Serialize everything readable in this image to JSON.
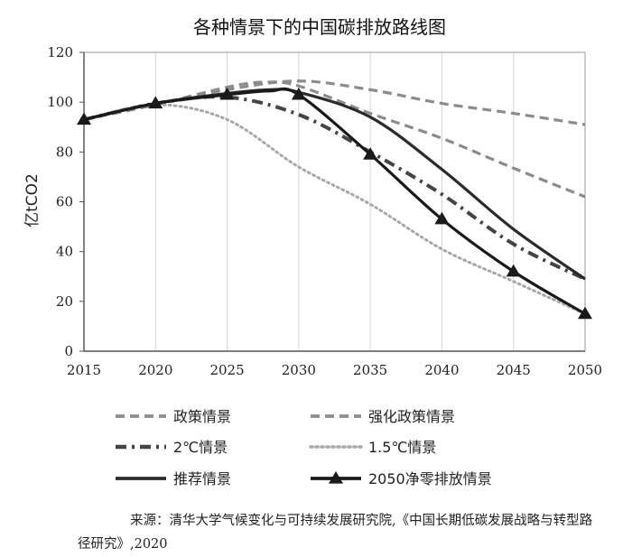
{
  "chart_data": {
    "type": "line",
    "title": "各种情景下的中国碳排放路线图",
    "ylabel": "亿tCO2",
    "xlabel": "",
    "xlim": [
      2015,
      2050
    ],
    "ylim": [
      0,
      120
    ],
    "x_ticks": [
      "2015",
      "2020",
      "2025",
      "2030",
      "2035",
      "2040",
      "2045",
      "2050"
    ],
    "y_ticks": [
      "0",
      "20",
      "40",
      "60",
      "80",
      "100",
      "120"
    ],
    "grid": "vertical",
    "legend_placement": "bottom",
    "series": [
      {
        "name": "政策情景",
        "style": "dashed",
        "color": "#8c8c8c",
        "x": [
          2015,
          2020,
          2025,
          2030,
          2035,
          2040,
          2045,
          2050
        ],
        "values": [
          93,
          99,
          105,
          108.5,
          105,
          99.5,
          95.5,
          91
        ]
      },
      {
        "name": "强化政策情景",
        "style": "dashed",
        "color": "#8c8c8c",
        "x": [
          2015,
          2020,
          2025,
          2027.5,
          2030,
          2035,
          2040,
          2045,
          2050
        ],
        "values": [
          93,
          99,
          106,
          108,
          106.5,
          95.5,
          85.5,
          73.5,
          62
        ]
      },
      {
        "name": "2℃情景",
        "style": "dash-dot",
        "color": "#444444",
        "x": [
          2015,
          2020,
          2025,
          2030,
          2035,
          2040,
          2045,
          2050
        ],
        "values": [
          93,
          99.5,
          102,
          95,
          80,
          63,
          43,
          29
        ]
      },
      {
        "name": "1.5℃情景",
        "style": "dotted",
        "color": "#a8a8a8",
        "x": [
          2015,
          2020,
          2025,
          2030,
          2035,
          2040,
          2045,
          2050
        ],
        "values": [
          93,
          99,
          93,
          74,
          59,
          41,
          28,
          15
        ]
      },
      {
        "name": "推荐情景",
        "style": "solid",
        "color": "#2b2b2b",
        "x": [
          2015,
          2020,
          2025,
          2028,
          2030,
          2035,
          2040,
          2045,
          2050
        ],
        "values": [
          93,
          99.5,
          103.5,
          105,
          104,
          94,
          73,
          49,
          29
        ]
      },
      {
        "name": "2050净零排放情景",
        "style": "solid-triangle",
        "color": "#1a1a1a",
        "x": [
          2015,
          2020,
          2025,
          2028,
          2030,
          2035,
          2040,
          2045,
          2050
        ],
        "values": [
          93,
          99.5,
          103,
          104.5,
          103,
          79,
          53,
          32,
          15
        ]
      }
    ]
  },
  "source_prefix": "来源：",
  "source_text": "清华大学气候变化与可持续发展研究院,《中国长期低碳发展战略与转型路径研究》,2020"
}
